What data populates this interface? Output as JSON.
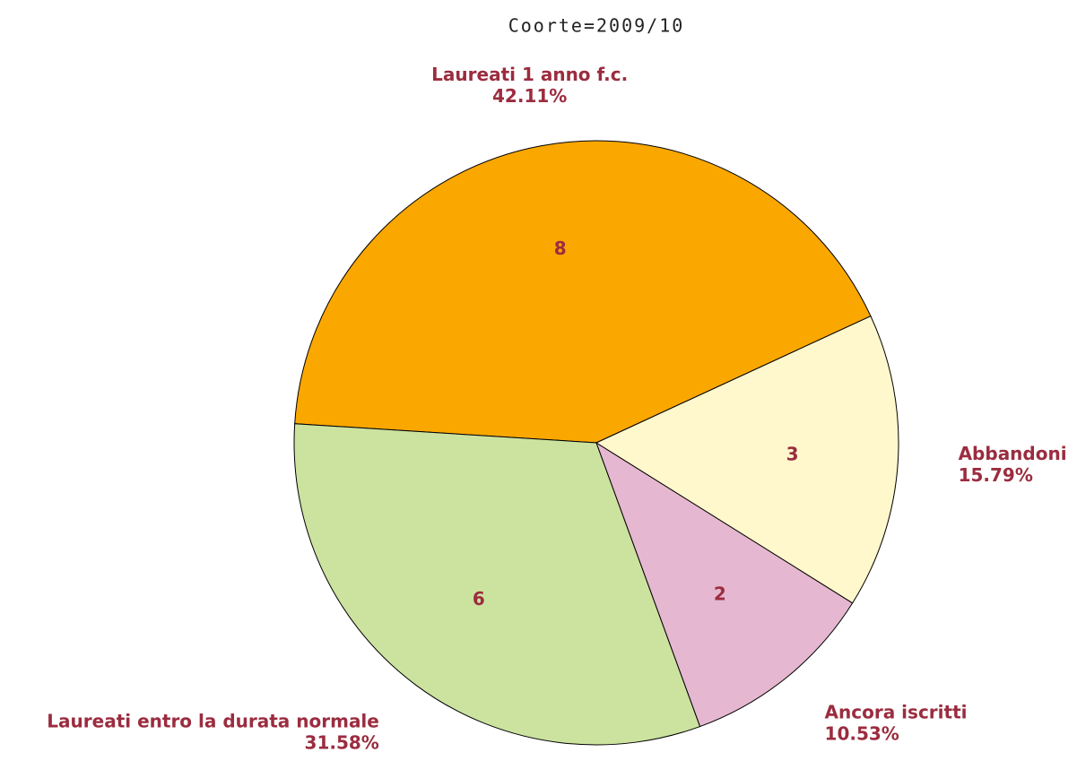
{
  "chart_data": {
    "type": "pie",
    "title": "Coorte=2009/10",
    "categories": [
      "Laureati 1 anno f.c.",
      "Laureati entro la durata normale",
      "Ancora iscritti",
      "Abbandoni"
    ],
    "values": [
      8,
      6,
      2,
      3
    ],
    "percent_labels": [
      "42.11%",
      "31.58%",
      "10.53%",
      "15.79%"
    ],
    "colors": [
      "#faa700",
      "#cce3a0",
      "#e6b7d0",
      "#fff8cc"
    ]
  }
}
